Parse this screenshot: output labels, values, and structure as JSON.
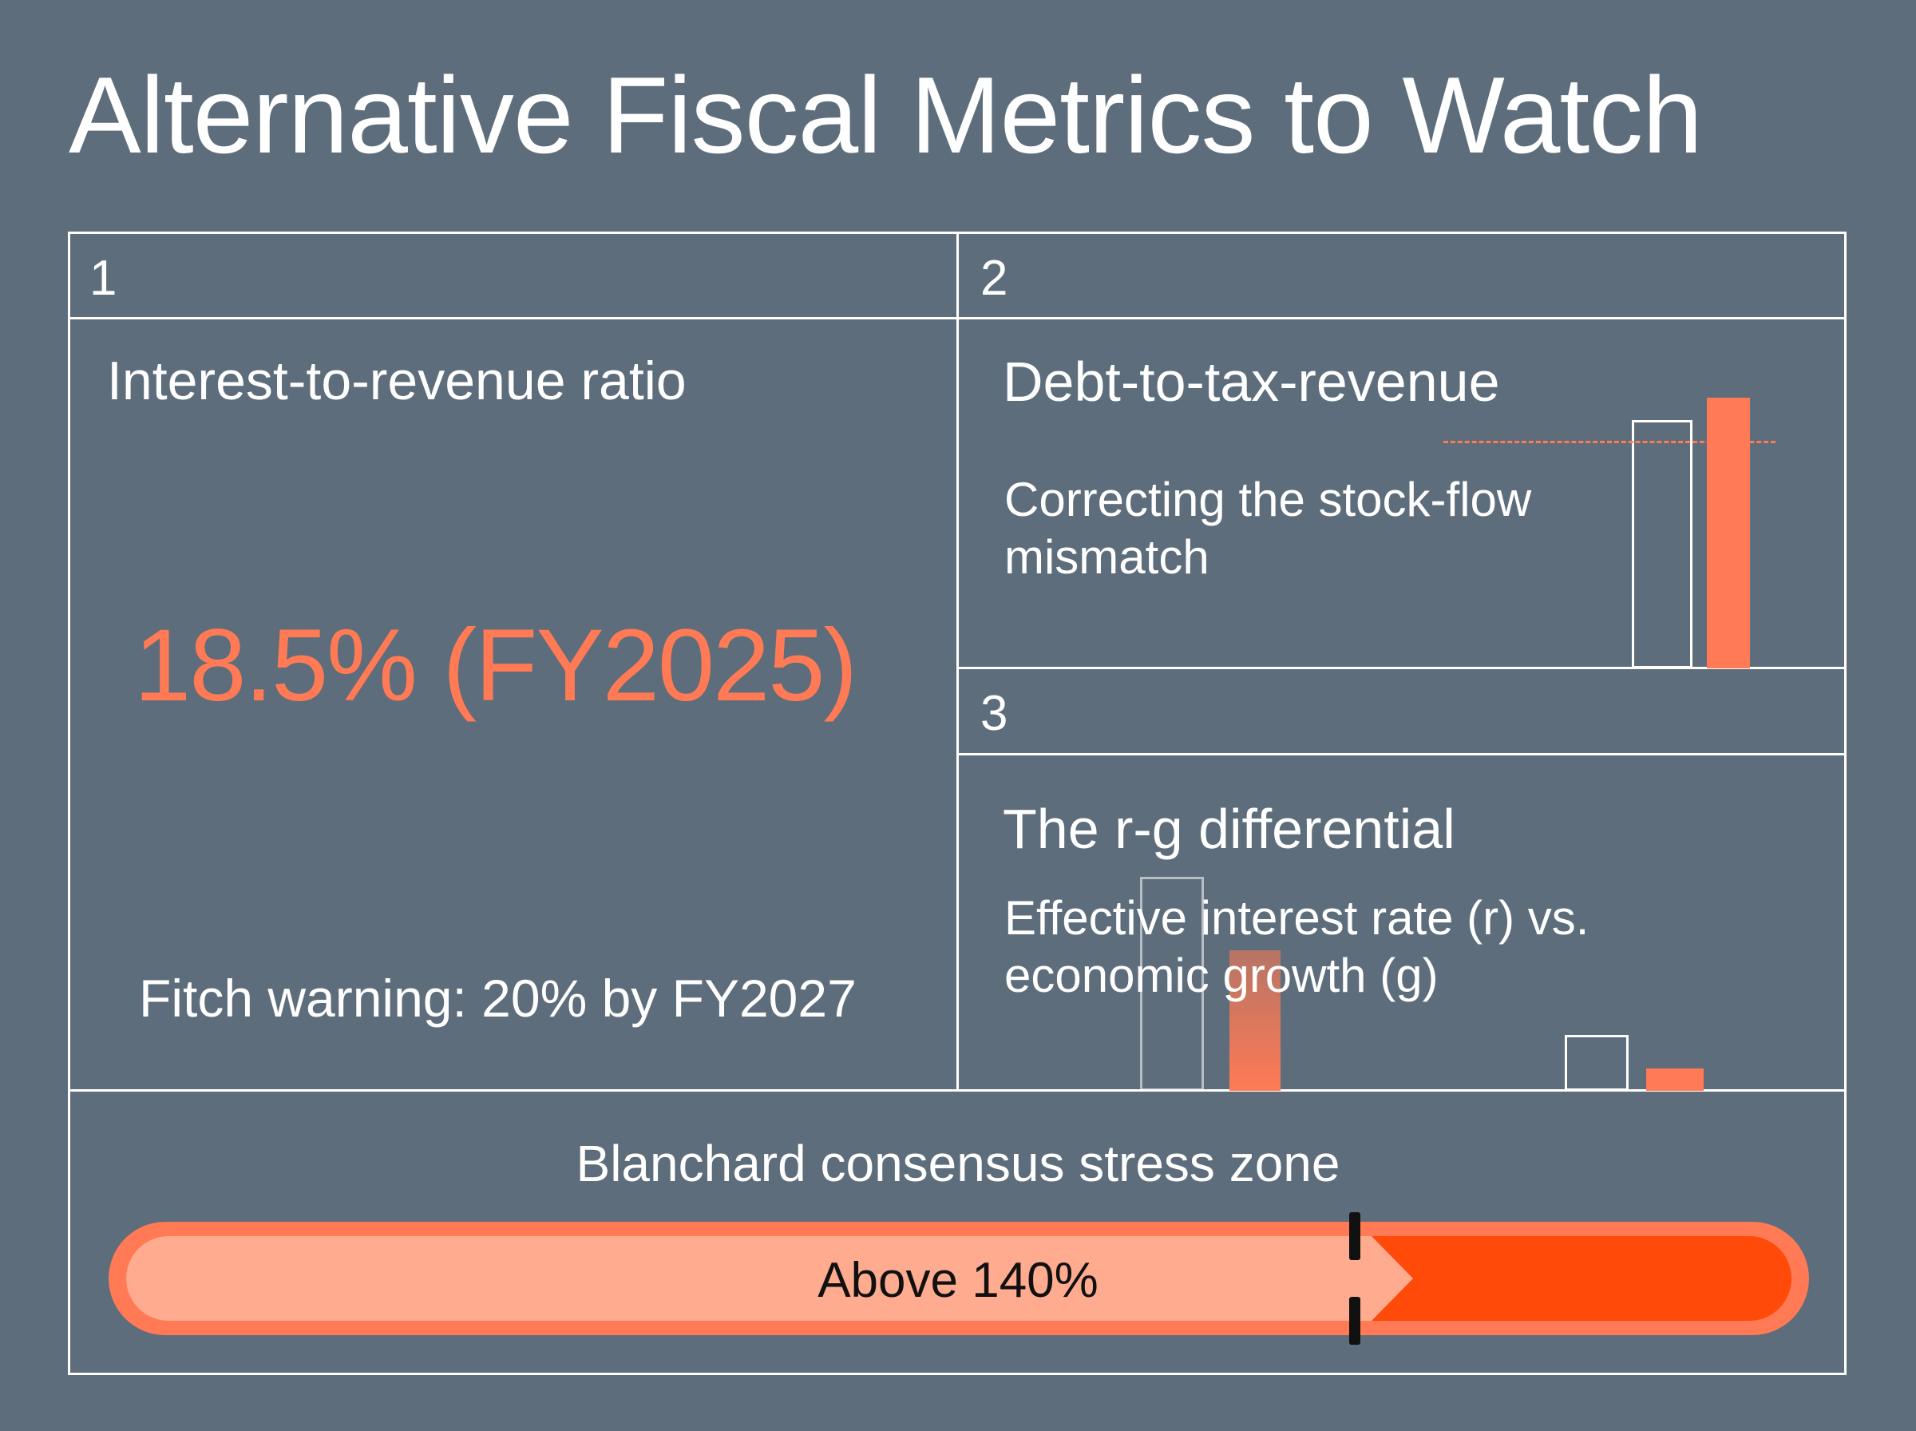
{
  "title": "Alternative Fiscal Metrics to Watch",
  "panels": [
    {
      "number": "1",
      "heading": "Interest-to-revenue ratio",
      "value": "18.5% (FY2025)",
      "note": "Fitch warning: 20% by FY2027"
    },
    {
      "number": "2",
      "heading": "Debt-to-tax-revenue",
      "subtitle": "Correcting the stock-flow mismatch"
    },
    {
      "number": "3",
      "heading": "The r-g differential",
      "subtitle": "Effective interest rate (r) vs. economic growth (g)"
    }
  ],
  "stress_zone": {
    "title": "Blanchard consensus stress zone",
    "label": "Above 140%"
  },
  "colors": {
    "background": "#5d6d7b",
    "accent": "#ff7a55",
    "accent_dark": "#ff4a0a",
    "accent_light": "#ffab90",
    "line": "#ffffff"
  }
}
